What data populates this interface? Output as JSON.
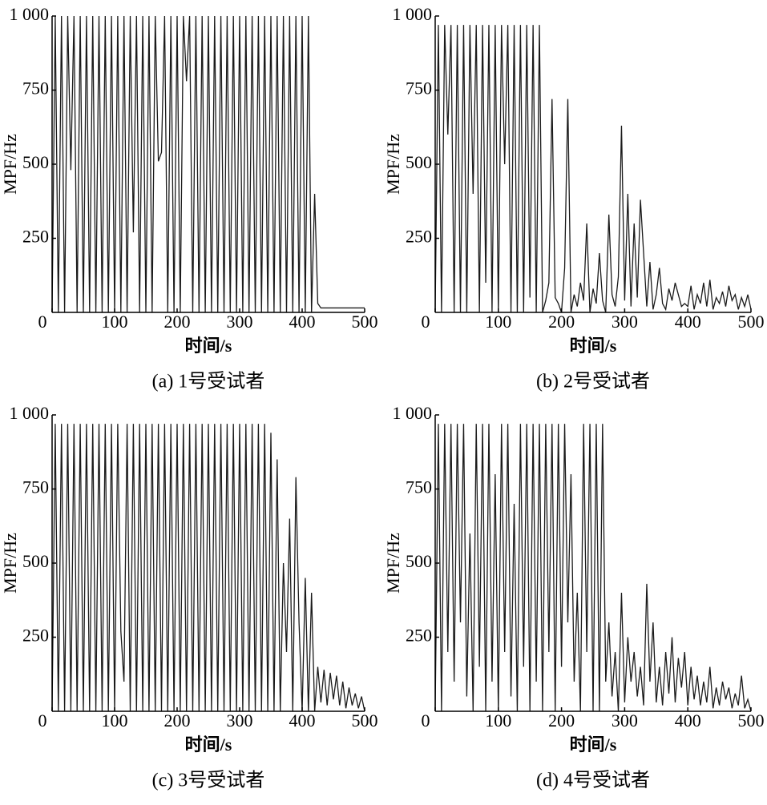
{
  "chart_data": [
    {
      "type": "line",
      "caption": "(a)  1号受试者",
      "x_label": "时间/s",
      "y_label": "MPF/Hz",
      "color": "#1a1a1a",
      "xlim": [
        0,
        500
      ],
      "ylim": [
        0,
        1000
      ],
      "xticks": [
        0,
        100,
        200,
        300,
        400,
        500
      ],
      "yticks": [
        250,
        500,
        750,
        {
          "value": 1000,
          "label": "1 000"
        }
      ],
      "x": [
        0,
        5,
        10,
        15,
        20,
        25,
        30,
        35,
        40,
        45,
        50,
        55,
        60,
        65,
        70,
        75,
        80,
        85,
        90,
        95,
        100,
        105,
        110,
        115,
        120,
        125,
        130,
        135,
        140,
        145,
        150,
        155,
        160,
        165,
        170,
        175,
        180,
        185,
        190,
        195,
        200,
        205,
        210,
        215,
        220,
        225,
        230,
        235,
        240,
        245,
        250,
        255,
        260,
        265,
        270,
        275,
        280,
        285,
        290,
        295,
        300,
        305,
        310,
        315,
        320,
        325,
        330,
        335,
        340,
        345,
        350,
        355,
        360,
        365,
        370,
        375,
        380,
        385,
        390,
        395,
        400,
        405,
        410,
        415,
        420,
        425,
        430,
        435,
        440,
        445,
        450,
        455,
        460,
        465,
        470,
        475,
        480,
        485,
        490,
        495,
        500
      ],
      "values": [
        0,
        1000,
        0,
        1000,
        0,
        1000,
        480,
        1000,
        0,
        1000,
        0,
        1000,
        0,
        1000,
        0,
        1000,
        0,
        1000,
        0,
        1000,
        0,
        1000,
        0,
        1000,
        0,
        1000,
        270,
        1000,
        0,
        1000,
        0,
        1000,
        0,
        1000,
        510,
        540,
        1000,
        0,
        1000,
        0,
        1000,
        0,
        1000,
        780,
        1000,
        0,
        1000,
        0,
        1000,
        0,
        1000,
        0,
        1000,
        0,
        1000,
        0,
        1000,
        0,
        1000,
        0,
        1000,
        0,
        1000,
        0,
        1000,
        0,
        1000,
        0,
        1000,
        0,
        1000,
        0,
        1000,
        0,
        1000,
        0,
        1000,
        0,
        1000,
        0,
        1000,
        0,
        1000,
        0,
        400,
        30,
        15,
        15,
        15,
        15,
        15,
        15,
        15,
        15,
        15,
        15,
        15,
        15,
        15,
        15,
        15
      ]
    },
    {
      "type": "line",
      "caption": "(b)  2号受试者",
      "x_label": "时间/s",
      "y_label": "MPF/Hz",
      "color": "#1a1a1a",
      "xlim": [
        0,
        500
      ],
      "ylim": [
        0,
        1000
      ],
      "xticks": [
        0,
        100,
        200,
        300,
        400,
        500
      ],
      "yticks": [
        250,
        500,
        750,
        {
          "value": 1000,
          "label": "1 000"
        }
      ],
      "x": [
        0,
        5,
        10,
        15,
        20,
        25,
        30,
        35,
        40,
        45,
        50,
        55,
        60,
        65,
        70,
        75,
        80,
        85,
        90,
        95,
        100,
        105,
        110,
        115,
        120,
        125,
        130,
        135,
        140,
        145,
        150,
        155,
        160,
        165,
        170,
        175,
        180,
        185,
        190,
        195,
        200,
        205,
        210,
        215,
        220,
        225,
        230,
        235,
        240,
        245,
        250,
        255,
        260,
        265,
        270,
        275,
        280,
        285,
        290,
        295,
        300,
        305,
        310,
        315,
        320,
        325,
        330,
        335,
        340,
        345,
        350,
        355,
        360,
        365,
        370,
        375,
        380,
        385,
        390,
        395,
        400,
        405,
        410,
        415,
        420,
        425,
        430,
        435,
        440,
        445,
        450,
        455,
        460,
        465,
        470,
        475,
        480,
        485,
        490,
        495,
        500
      ],
      "values": [
        0,
        970,
        0,
        970,
        600,
        970,
        0,
        970,
        0,
        970,
        0,
        970,
        400,
        970,
        0,
        970,
        100,
        970,
        0,
        970,
        0,
        970,
        500,
        970,
        0,
        970,
        0,
        970,
        0,
        970,
        50,
        970,
        0,
        970,
        0,
        40,
        100,
        720,
        50,
        30,
        0,
        150,
        720,
        0,
        60,
        20,
        100,
        40,
        300,
        0,
        80,
        30,
        200,
        40,
        0,
        330,
        60,
        20,
        120,
        630,
        40,
        400,
        20,
        300,
        50,
        380,
        200,
        20,
        170,
        10,
        60,
        150,
        30,
        10,
        80,
        40,
        100,
        60,
        20,
        30,
        20,
        90,
        10,
        60,
        30,
        100,
        20,
        110,
        10,
        50,
        30,
        70,
        20,
        90,
        40,
        60,
        10,
        50,
        20,
        60,
        10
      ]
    },
    {
      "type": "line",
      "caption": "(c)  3号受试者",
      "x_label": "时间/s",
      "y_label": "MPF/Hz",
      "color": "#1a1a1a",
      "xlim": [
        0,
        500
      ],
      "ylim": [
        0,
        1000
      ],
      "xticks": [
        0,
        100,
        200,
        300,
        400,
        500
      ],
      "yticks": [
        250,
        500,
        750,
        {
          "value": 1000,
          "label": "1 000"
        }
      ],
      "x": [
        0,
        5,
        10,
        15,
        20,
        25,
        30,
        35,
        40,
        45,
        50,
        55,
        60,
        65,
        70,
        75,
        80,
        85,
        90,
        95,
        100,
        105,
        110,
        115,
        120,
        125,
        130,
        135,
        140,
        145,
        150,
        155,
        160,
        165,
        170,
        175,
        180,
        185,
        190,
        195,
        200,
        205,
        210,
        215,
        220,
        225,
        230,
        235,
        240,
        245,
        250,
        255,
        260,
        265,
        270,
        275,
        280,
        285,
        290,
        295,
        300,
        305,
        310,
        315,
        320,
        325,
        330,
        335,
        340,
        345,
        350,
        355,
        360,
        365,
        370,
        375,
        380,
        385,
        390,
        395,
        400,
        405,
        410,
        415,
        420,
        425,
        430,
        435,
        440,
        445,
        450,
        455,
        460,
        465,
        470,
        475,
        480,
        485,
        490,
        495,
        500
      ],
      "values": [
        0,
        970,
        0,
        970,
        0,
        970,
        0,
        970,
        0,
        970,
        0,
        970,
        0,
        970,
        0,
        970,
        0,
        970,
        0,
        970,
        0,
        970,
        270,
        100,
        970,
        0,
        970,
        0,
        970,
        0,
        970,
        0,
        970,
        0,
        970,
        0,
        970,
        0,
        970,
        0,
        970,
        0,
        970,
        0,
        970,
        0,
        970,
        0,
        970,
        0,
        970,
        0,
        970,
        0,
        970,
        0,
        970,
        0,
        970,
        0,
        970,
        0,
        970,
        0,
        970,
        0,
        970,
        0,
        970,
        0,
        940,
        0,
        850,
        0,
        500,
        200,
        650,
        0,
        790,
        300,
        0,
        450,
        0,
        400,
        0,
        150,
        30,
        140,
        20,
        130,
        40,
        120,
        20,
        100,
        10,
        80,
        20,
        60,
        10,
        50,
        0
      ]
    },
    {
      "type": "line",
      "caption": "(d)  4号受试者",
      "x_label": "时间/s",
      "y_label": "MPF/Hz",
      "color": "#1a1a1a",
      "xlim": [
        0,
        500
      ],
      "ylim": [
        0,
        1000
      ],
      "xticks": [
        0,
        100,
        200,
        300,
        400,
        500
      ],
      "yticks": [
        250,
        500,
        750,
        {
          "value": 1000,
          "label": "1 000"
        }
      ],
      "x": [
        0,
        5,
        10,
        15,
        20,
        25,
        30,
        35,
        40,
        45,
        50,
        55,
        60,
        65,
        70,
        75,
        80,
        85,
        90,
        95,
        100,
        105,
        110,
        115,
        120,
        125,
        130,
        135,
        140,
        145,
        150,
        155,
        160,
        165,
        170,
        175,
        180,
        185,
        190,
        195,
        200,
        205,
        210,
        215,
        220,
        225,
        230,
        235,
        240,
        245,
        250,
        255,
        260,
        265,
        270,
        275,
        280,
        285,
        290,
        295,
        300,
        305,
        310,
        315,
        320,
        325,
        330,
        335,
        340,
        345,
        350,
        355,
        360,
        365,
        370,
        375,
        380,
        385,
        390,
        395,
        400,
        405,
        410,
        415,
        420,
        425,
        430,
        435,
        440,
        445,
        450,
        455,
        460,
        465,
        470,
        475,
        480,
        485,
        490,
        495,
        500
      ],
      "values": [
        0,
        970,
        0,
        970,
        200,
        970,
        100,
        970,
        300,
        970,
        50,
        600,
        0,
        970,
        150,
        970,
        0,
        970,
        100,
        800,
        0,
        970,
        200,
        970,
        50,
        700,
        0,
        970,
        150,
        970,
        0,
        970,
        100,
        970,
        0,
        970,
        200,
        970,
        0,
        970,
        150,
        970,
        300,
        800,
        100,
        400,
        0,
        970,
        200,
        970,
        0,
        970,
        0,
        970,
        100,
        300,
        50,
        200,
        0,
        400,
        30,
        250,
        100,
        200,
        50,
        150,
        20,
        430,
        100,
        300,
        30,
        150,
        20,
        200,
        60,
        250,
        30,
        180,
        80,
        200,
        20,
        150,
        40,
        120,
        20,
        100,
        30,
        150,
        10,
        80,
        20,
        100,
        40,
        80,
        10,
        60,
        20,
        120,
        10,
        40,
        0
      ]
    }
  ]
}
